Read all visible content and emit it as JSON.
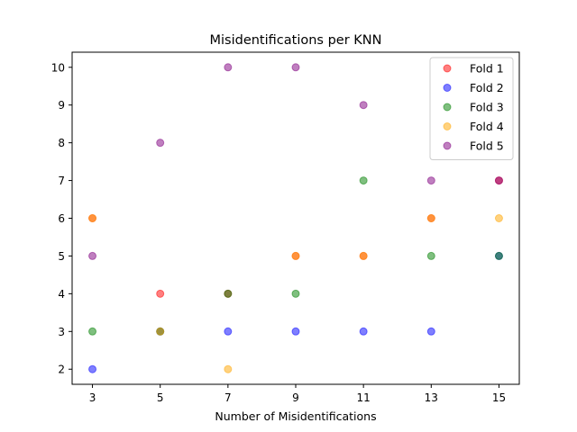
{
  "chart_data": {
    "type": "scatter",
    "title": "Misidentifications per KNN",
    "xlabel": "Number of Misidentifications",
    "ylabel": "",
    "xlim": [
      2.4,
      15.6
    ],
    "ylim": [
      1.6,
      10.4
    ],
    "xticks": [
      3,
      5,
      7,
      9,
      11,
      13,
      15
    ],
    "yticks": [
      2,
      3,
      4,
      5,
      6,
      7,
      8,
      9,
      10
    ],
    "grid": false,
    "legend_position": "top-right",
    "marker_alpha": 0.5,
    "series": [
      {
        "name": "Fold 1",
        "color": "#ff0000",
        "points": [
          [
            3,
            6
          ],
          [
            5,
            4
          ],
          [
            7,
            4
          ],
          [
            9,
            5
          ],
          [
            11,
            5
          ],
          [
            13,
            6
          ],
          [
            15,
            7
          ]
        ]
      },
      {
        "name": "Fold 2",
        "color": "#0000ff",
        "points": [
          [
            3,
            2
          ],
          [
            5,
            3
          ],
          [
            7,
            3
          ],
          [
            9,
            3
          ],
          [
            11,
            3
          ],
          [
            13,
            3
          ],
          [
            15,
            5
          ]
        ]
      },
      {
        "name": "Fold 3",
        "color": "#008000",
        "points": [
          [
            3,
            3
          ],
          [
            5,
            3
          ],
          [
            7,
            4
          ],
          [
            9,
            4
          ],
          [
            11,
            7
          ],
          [
            13,
            5
          ],
          [
            15,
            5
          ]
        ]
      },
      {
        "name": "Fold 4",
        "color": "#ffa500",
        "points": [
          [
            3,
            6
          ],
          [
            5,
            3
          ],
          [
            7,
            2
          ],
          [
            9,
            5
          ],
          [
            11,
            5
          ],
          [
            13,
            6
          ],
          [
            15,
            6
          ]
        ]
      },
      {
        "name": "Fold 5",
        "color": "#800080",
        "points": [
          [
            3,
            5
          ],
          [
            5,
            8
          ],
          [
            7,
            10
          ],
          [
            9,
            10
          ],
          [
            11,
            9
          ],
          [
            13,
            7
          ],
          [
            15,
            7
          ]
        ]
      }
    ]
  }
}
